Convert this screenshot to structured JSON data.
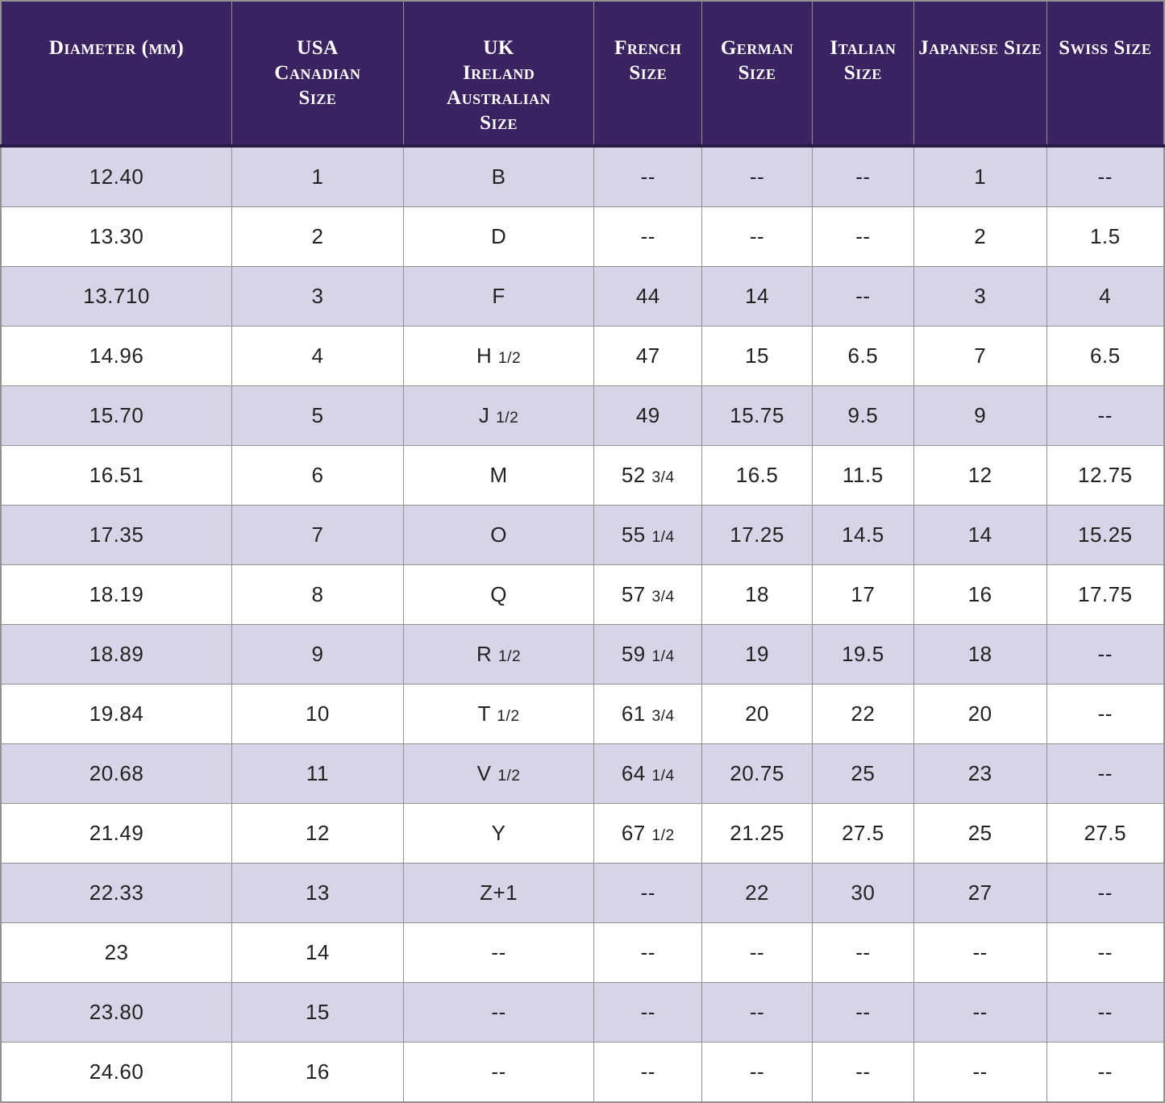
{
  "colors": {
    "header_bg": "#3B2361",
    "header_text": "#FFFFFF",
    "row_alt_bg": "#D8D3E6",
    "row_bg": "#FFFFFF",
    "border": "#919191",
    "header_divider": "#2B1A45",
    "cell_text": "#222222"
  },
  "chart_data": {
    "type": "table",
    "columns": [
      "Diameter (mm)",
      "USA\nCanadian\nSize",
      "UK\nIreland\nAustralian\nSize",
      "French\nSize",
      "German\nSize",
      "Italian\nSize",
      "Japanese Size",
      "Swiss Size"
    ],
    "column_widths_pct": [
      19.86,
      14.74,
      16.4,
      9.27,
      9.48,
      8.72,
      11.42,
      10.11
    ],
    "rows": [
      [
        "12.40",
        "1",
        "B",
        "--",
        "--",
        "--",
        "1",
        "--"
      ],
      [
        "13.30",
        "2",
        "D",
        "--",
        "--",
        "--",
        "2",
        "1.5"
      ],
      [
        "13.710",
        "3",
        "F",
        "44",
        "14",
        "--",
        "3",
        "4"
      ],
      [
        "14.96",
        "4",
        "H 1/2",
        "47",
        "15",
        "6.5",
        "7",
        "6.5"
      ],
      [
        "15.70",
        "5",
        "J 1/2",
        "49",
        "15.75",
        "9.5",
        "9",
        "--"
      ],
      [
        "16.51",
        "6",
        "M",
        "52 3/4",
        "16.5",
        "11.5",
        "12",
        "12.75"
      ],
      [
        "17.35",
        "7",
        "O",
        "55 1/4",
        "17.25",
        "14.5",
        "14",
        "15.25"
      ],
      [
        "18.19",
        "8",
        "Q",
        "57 3/4",
        "18",
        "17",
        "16",
        "17.75"
      ],
      [
        "18.89",
        "9",
        "R 1/2",
        "59 1/4",
        "19",
        "19.5",
        "18",
        "--"
      ],
      [
        "19.84",
        "10",
        "T 1/2",
        "61 3/4",
        "20",
        "22",
        "20",
        "--"
      ],
      [
        "20.68",
        "11",
        "V 1/2",
        "64 1/4",
        "20.75",
        "25",
        "23",
        "--"
      ],
      [
        "21.49",
        "12",
        "Y",
        "67 1/2",
        "21.25",
        "27.5",
        "25",
        "27.5"
      ],
      [
        "22.33",
        "13",
        "Z+1",
        "--",
        "22",
        "30",
        "27",
        "--"
      ],
      [
        "23",
        "14",
        "--",
        "--",
        "--",
        "--",
        "--",
        "--"
      ],
      [
        "23.80",
        "15",
        "--",
        "--",
        "--",
        "--",
        "--",
        "--"
      ],
      [
        "24.60",
        "16",
        "--",
        "--",
        "--",
        "--",
        "--",
        "--"
      ]
    ],
    "layout": {
      "header_rows": 1,
      "body_rows": 16,
      "striping": "odd-rows-lavender",
      "grid": true
    }
  }
}
